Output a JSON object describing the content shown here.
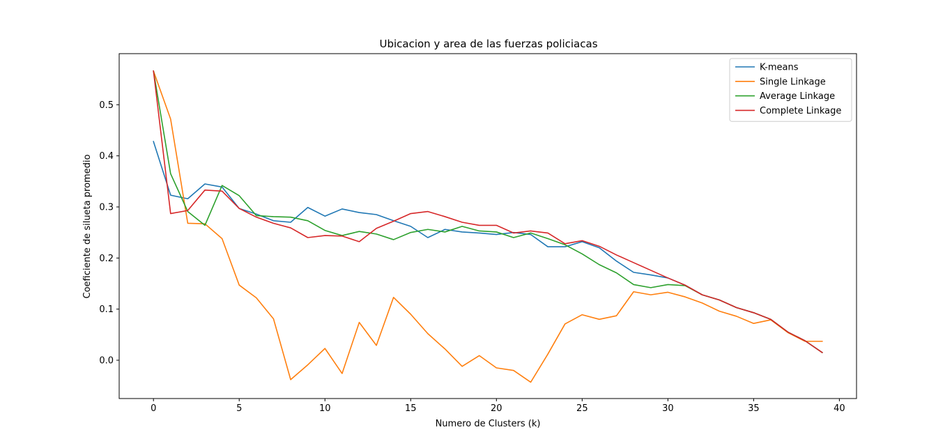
{
  "chart_data": {
    "type": "line",
    "title": "Ubicacion y area de las fuerzas policiacas",
    "xlabel": "Numero de Clusters (k)",
    "ylabel": "Coeficiente de silueta promedio",
    "xlim": [
      -2,
      41
    ],
    "ylim": [
      -0.075,
      0.6
    ],
    "xticks": [
      0,
      5,
      10,
      15,
      20,
      25,
      30,
      35,
      40
    ],
    "yticks": [
      0.0,
      0.1,
      0.2,
      0.3,
      0.4,
      0.5
    ],
    "ytick_labels": [
      "0.0",
      "0.1",
      "0.2",
      "0.3",
      "0.4",
      "0.5"
    ],
    "legend_position": "top-right",
    "x": [
      0,
      1,
      2,
      3,
      4,
      5,
      6,
      7,
      8,
      9,
      10,
      11,
      12,
      13,
      14,
      15,
      16,
      17,
      18,
      19,
      20,
      21,
      22,
      23,
      24,
      25,
      26,
      27,
      28,
      29,
      30,
      31,
      32,
      33,
      34,
      35,
      36,
      37,
      38,
      39
    ],
    "series": [
      {
        "name": "K-means",
        "color": "#1f77b4",
        "values": [
          0.428,
          0.323,
          0.316,
          0.345,
          0.339,
          0.297,
          0.286,
          0.273,
          0.27,
          0.299,
          0.282,
          0.296,
          0.289,
          0.285,
          0.273,
          0.262,
          0.24,
          0.256,
          0.251,
          0.249,
          0.246,
          0.25,
          0.246,
          0.222,
          0.222,
          0.232,
          0.22,
          0.194,
          0.172,
          0.167,
          0.161,
          0.147,
          0.128,
          0.118,
          0.103,
          0.093,
          0.08,
          0.055,
          0.038,
          0.015
        ]
      },
      {
        "name": "Single Linkage",
        "color": "#ff7f0e",
        "values": [
          0.566,
          0.472,
          0.268,
          0.267,
          0.238,
          0.147,
          0.122,
          0.081,
          -0.038,
          -0.009,
          0.023,
          -0.026,
          0.074,
          0.029,
          0.123,
          0.09,
          0.052,
          0.022,
          -0.012,
          0.009,
          -0.015,
          -0.02,
          -0.043,
          0.012,
          0.071,
          0.089,
          0.08,
          0.087,
          0.134,
          0.128,
          0.133,
          0.124,
          0.112,
          0.096,
          0.086,
          0.072,
          0.079,
          0.054,
          0.037,
          0.037
        ]
      },
      {
        "name": "Average Linkage",
        "color": "#2ca02c",
        "values": [
          0.566,
          0.365,
          0.291,
          0.264,
          0.342,
          0.322,
          0.283,
          0.281,
          0.28,
          0.273,
          0.254,
          0.244,
          0.252,
          0.247,
          0.236,
          0.25,
          0.256,
          0.251,
          0.262,
          0.253,
          0.251,
          0.24,
          0.249,
          0.238,
          0.226,
          0.208,
          0.187,
          0.171,
          0.148,
          0.142,
          0.148,
          0.146,
          0.128,
          0.118,
          0.103,
          0.093,
          0.08,
          0.055,
          0.038,
          0.015
        ]
      },
      {
        "name": "Complete Linkage",
        "color": "#d62728",
        "values": [
          0.566,
          0.287,
          0.293,
          0.333,
          0.331,
          0.297,
          0.28,
          0.268,
          0.259,
          0.24,
          0.244,
          0.243,
          0.232,
          0.258,
          0.272,
          0.287,
          0.291,
          0.281,
          0.27,
          0.264,
          0.264,
          0.249,
          0.253,
          0.249,
          0.228,
          0.234,
          0.223,
          0.206,
          0.191,
          0.176,
          0.161,
          0.147,
          0.128,
          0.118,
          0.103,
          0.093,
          0.08,
          0.055,
          0.038,
          0.015
        ]
      }
    ]
  }
}
